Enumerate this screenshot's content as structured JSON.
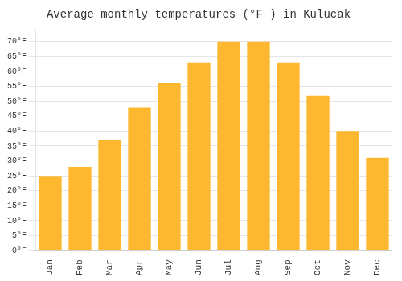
{
  "chart_data": {
    "type": "bar",
    "title": "Average monthly temperatures (°F ) in Kulucak",
    "categories": [
      "Jan",
      "Feb",
      "Mar",
      "Apr",
      "May",
      "Jun",
      "Jul",
      "Aug",
      "Sep",
      "Oct",
      "Nov",
      "Dec"
    ],
    "values": [
      25,
      28,
      37,
      48,
      56,
      63,
      70,
      70,
      63,
      52,
      40,
      31
    ],
    "color": "#FDB830",
    "ylim": [
      0,
      74
    ],
    "yticks": [
      {
        "value": 0,
        "label": "0°F"
      },
      {
        "value": 5,
        "label": "5°F"
      },
      {
        "value": 10,
        "label": "10°F"
      },
      {
        "value": 15,
        "label": "15°F"
      },
      {
        "value": 20,
        "label": "20°F"
      },
      {
        "value": 25,
        "label": "25°F"
      },
      {
        "value": 30,
        "label": "30°F"
      },
      {
        "value": 35,
        "label": "35°F"
      },
      {
        "value": 40,
        "label": "40°F"
      },
      {
        "value": 45,
        "label": "45°F"
      },
      {
        "value": 50,
        "label": "50°F"
      },
      {
        "value": 55,
        "label": "55°F"
      },
      {
        "value": 60,
        "label": "60°F"
      },
      {
        "value": 65,
        "label": "65°F"
      },
      {
        "value": 70,
        "label": "70°F"
      }
    ],
    "grid": true
  }
}
